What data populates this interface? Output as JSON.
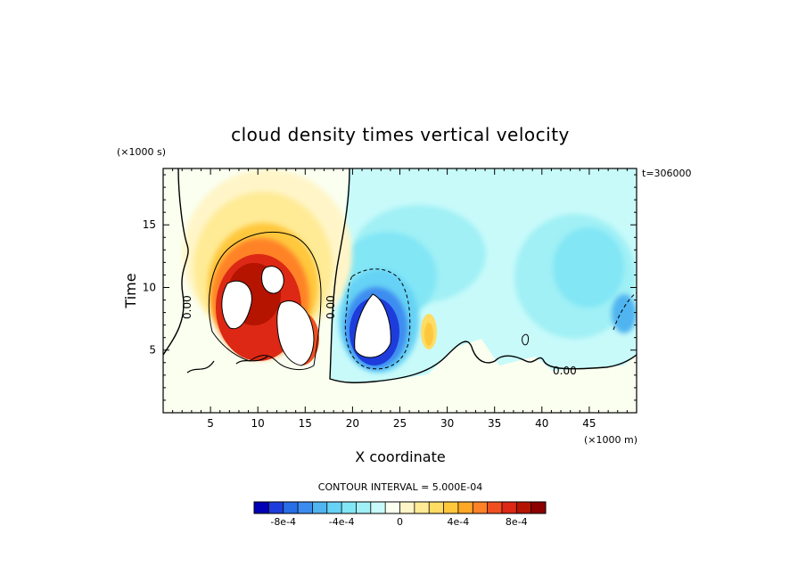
{
  "chart_data": {
    "type": "heatmap",
    "title": "cloud density times vertical velocity",
    "xlabel": "X coordinate",
    "ylabel": "Time",
    "x_units": "(×1000 m)",
    "y_units": "(×1000 s)",
    "timestamp": "t=306000",
    "xlim": [
      0,
      50
    ],
    "ylim": [
      0,
      19.5
    ],
    "x_ticks": [
      5,
      10,
      15,
      20,
      25,
      30,
      35,
      40,
      45
    ],
    "y_ticks": [
      5,
      10,
      15
    ],
    "x_tick_labels": [
      "5",
      "10",
      "15",
      "20",
      "25",
      "30",
      "35",
      "40",
      "45"
    ],
    "y_tick_labels": [
      "5",
      "10",
      "15"
    ],
    "contour_labels": [
      "0.00",
      "0.00",
      "0.00"
    ],
    "contour_interval_text": "CONTOUR INTERVAL = 5.000E-04",
    "colorbar": {
      "min": -0.001,
      "max": 0.001,
      "step": 0.0001,
      "tick_values": [
        -0.0008,
        -0.0004,
        0,
        0.0004,
        0.0008
      ],
      "tick_labels": [
        "-8e-4",
        "-4e-4",
        "0",
        "4e-4",
        "8e-4"
      ],
      "colors": [
        "#0000b4",
        "#1e3cdc",
        "#286ee6",
        "#3c8cf0",
        "#50b4f0",
        "#66d2f5",
        "#82e6f5",
        "#a0f0f5",
        "#c8fafa",
        "#fafff0",
        "#fff5c8",
        "#ffeb96",
        "#ffdc64",
        "#ffc83c",
        "#ffa828",
        "#ff8228",
        "#f05020",
        "#dc2814",
        "#b41400",
        "#8c0000"
      ]
    },
    "features": [
      {
        "name": "updraft",
        "x": 11,
        "y": 10,
        "value": 0.0009
      },
      {
        "name": "downdraft",
        "x": 23,
        "y": 7,
        "value": -0.0009
      },
      {
        "name": "weak updraft",
        "x": 28,
        "y": 7,
        "value": 0.0003
      },
      {
        "name": "weak downdraft",
        "x": 47.5,
        "y": 9,
        "value": -0.0005
      },
      {
        "name": "weak downdraft",
        "x": 42,
        "y": 10,
        "value": -0.0004
      }
    ]
  }
}
